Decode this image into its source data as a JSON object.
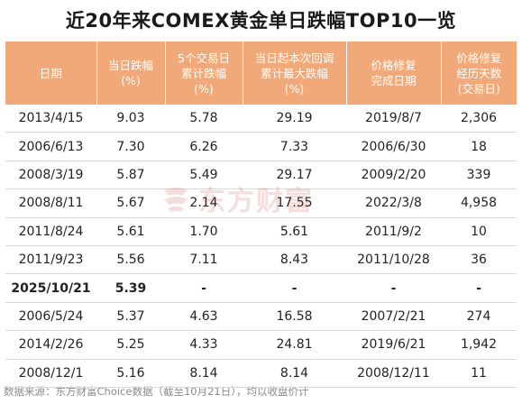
{
  "title": "近20年来COMEX黄金单日跌幅TOP10一览",
  "table": {
    "headers": [
      [
        "日期"
      ],
      [
        "当日跌幅",
        "(%)"
      ],
      [
        "5个交易日",
        "累计跌幅",
        "(%)"
      ],
      [
        "当日起本次回调",
        "累计最大跌幅",
        "(%)"
      ],
      [
        "价格修复",
        "完成日期"
      ],
      [
        "价格修复",
        "经历天数",
        "(交易日)"
      ]
    ],
    "rows": [
      {
        "date": "2013/4/15",
        "daily_drop": "9.03",
        "five_day_drop": "5.78",
        "max_drop": "29.19",
        "recovery_date": "2019/8/7",
        "recovery_days": "2,306",
        "bold": false
      },
      {
        "date": "2006/6/13",
        "daily_drop": "7.30",
        "five_day_drop": "6.26",
        "max_drop": "7.33",
        "recovery_date": "2006/6/30",
        "recovery_days": "18",
        "bold": false
      },
      {
        "date": "2008/3/19",
        "daily_drop": "5.87",
        "five_day_drop": "5.49",
        "max_drop": "29.17",
        "recovery_date": "2009/2/20",
        "recovery_days": "339",
        "bold": false
      },
      {
        "date": "2008/8/11",
        "daily_drop": "5.67",
        "five_day_drop": "2.14",
        "max_drop": "17.55",
        "recovery_date": "2022/3/8",
        "recovery_days": "4,958",
        "bold": false
      },
      {
        "date": "2011/8/24",
        "daily_drop": "5.61",
        "five_day_drop": "1.70",
        "max_drop": "5.61",
        "recovery_date": "2011/9/2",
        "recovery_days": "10",
        "bold": false
      },
      {
        "date": "2011/9/23",
        "daily_drop": "5.56",
        "five_day_drop": "7.11",
        "max_drop": "8.43",
        "recovery_date": "2011/10/28",
        "recovery_days": "36",
        "bold": false
      },
      {
        "date": "2025/10/21",
        "daily_drop": "5.39",
        "five_day_drop": "-",
        "max_drop": "-",
        "recovery_date": "-",
        "recovery_days": "-",
        "bold": true
      },
      {
        "date": "2006/5/24",
        "daily_drop": "5.37",
        "five_day_drop": "4.63",
        "max_drop": "16.58",
        "recovery_date": "2007/2/21",
        "recovery_days": "274",
        "bold": false
      },
      {
        "date": "2014/2/26",
        "daily_drop": "5.25",
        "five_day_drop": "4.33",
        "max_drop": "24.81",
        "recovery_date": "2019/6/21",
        "recovery_days": "1,942",
        "bold": false
      },
      {
        "date": "2008/12/1",
        "daily_drop": "5.16",
        "five_day_drop": "8.14",
        "max_drop": "8.14",
        "recovery_date": "2008/12/11",
        "recovery_days": "11",
        "bold": false
      }
    ]
  },
  "watermark": {
    "text": "东方财富",
    "icon": "eastmoney-logo-icon",
    "color": "#c0392b"
  },
  "footnote": "数据来源：东方财富Choice数据（截至10月21日），均以收盘价计",
  "colors": {
    "header_bg": "#f2a97a",
    "header_text": "#ffffff",
    "row_border": "#d9d9d9"
  }
}
